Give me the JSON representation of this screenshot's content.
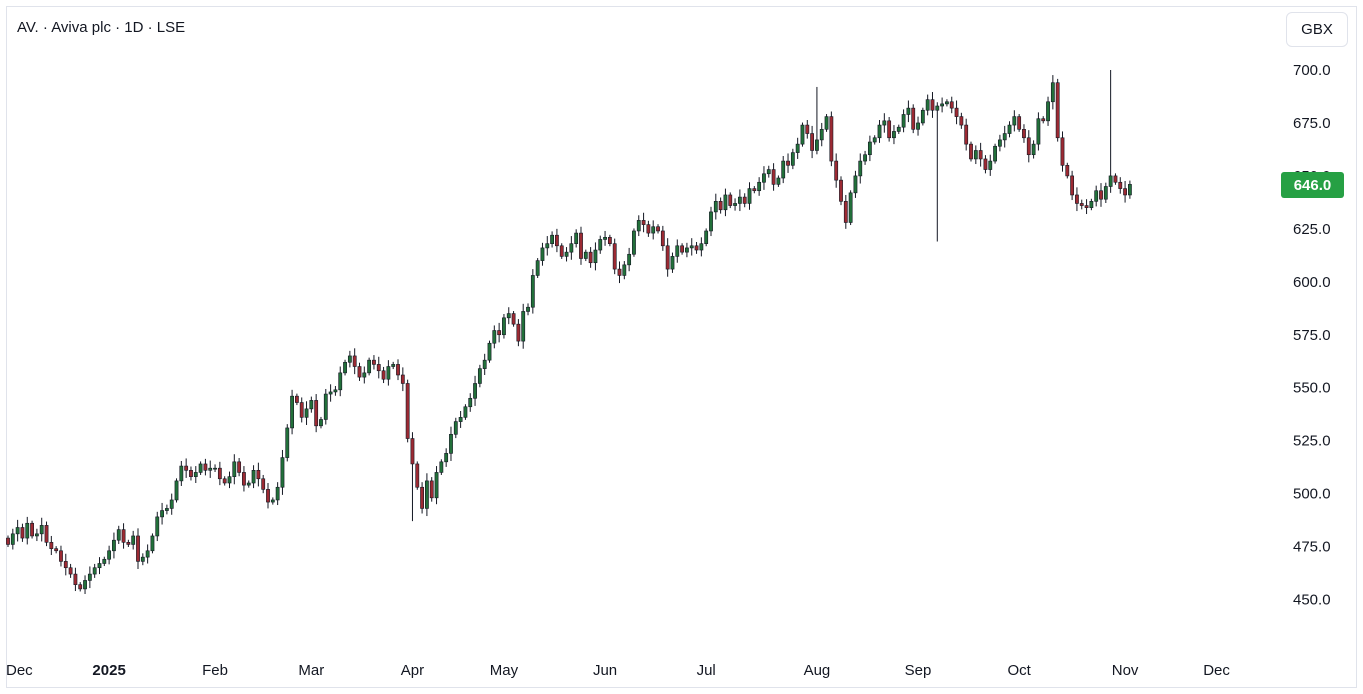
{
  "header": {
    "symbol_line": "AV. · Aviva plc · 1D · LSE",
    "currency_button": "GBX"
  },
  "last_price_label": "646.0",
  "colors": {
    "up": "#22703a",
    "down": "#9c2a33",
    "wick": "#131722",
    "price_tag": "#26a044"
  },
  "chart_data": {
    "type": "candlestick",
    "title": "AV. · Aviva plc · 1D · LSE",
    "ylabel": "GBX",
    "ylim": [
      430,
      710
    ],
    "y_ticks": [
      "700.0",
      "675.0",
      "650.0",
      "625.0",
      "600.0",
      "575.0",
      "550.0",
      "525.0",
      "500.0",
      "475.0",
      "450.0"
    ],
    "x_ticks": [
      {
        "label": "Dec",
        "bold": false
      },
      {
        "label": "2025",
        "bold": true
      },
      {
        "label": "Feb",
        "bold": false
      },
      {
        "label": "Mar",
        "bold": false
      },
      {
        "label": "Apr",
        "bold": false
      },
      {
        "label": "May",
        "bold": false
      },
      {
        "label": "Jun",
        "bold": false
      },
      {
        "label": "Jul",
        "bold": false
      },
      {
        "label": "Aug",
        "bold": false
      },
      {
        "label": "Sep",
        "bold": false
      },
      {
        "label": "Oct",
        "bold": false
      },
      {
        "label": "Nov",
        "bold": false
      },
      {
        "label": "Dec",
        "bold": false
      }
    ],
    "x_tick_index": [
      0,
      21,
      43,
      63,
      84,
      103,
      124,
      145,
      168,
      189,
      210,
      232,
      251
    ],
    "last_price": 646.0,
    "closes": [
      476,
      481,
      484,
      479,
      486,
      480,
      481,
      485,
      477,
      474,
      473,
      468,
      465,
      462,
      457,
      455,
      459,
      462,
      465,
      467,
      469,
      473,
      478,
      483,
      477,
      476,
      480,
      468,
      470,
      473,
      480,
      489,
      492,
      493,
      497,
      506,
      513,
      511,
      508,
      510,
      514,
      511,
      512,
      512,
      507,
      505,
      508,
      515,
      510,
      504,
      505,
      511,
      507,
      502,
      496,
      497,
      503,
      517,
      531,
      546,
      543,
      536,
      540,
      544,
      532,
      535,
      547,
      548,
      549,
      557,
      562,
      565,
      560,
      555,
      557,
      563,
      561,
      558,
      554,
      560,
      561,
      556,
      552,
      526,
      514,
      503,
      493,
      506,
      498,
      510,
      515,
      519,
      528,
      534,
      536,
      541,
      545,
      552,
      559,
      563,
      571,
      577,
      575,
      583,
      585,
      580,
      572,
      586,
      588,
      603,
      610,
      616,
      618,
      622,
      617,
      612,
      614,
      618,
      623,
      611,
      614,
      609,
      615,
      620,
      621,
      618,
      606,
      603,
      608,
      613,
      624,
      629,
      627,
      623,
      626,
      624,
      617,
      606,
      612,
      617,
      614,
      616,
      617,
      615,
      618,
      624,
      633,
      638,
      634,
      641,
      636,
      637,
      640,
      637,
      644,
      643,
      647,
      651,
      653,
      646,
      649,
      657,
      655,
      661,
      665,
      674,
      670,
      662,
      667,
      672,
      678,
      657,
      648,
      638,
      628,
      642,
      650,
      657,
      660,
      666,
      668,
      674,
      676,
      668,
      671,
      673,
      679,
      682,
      672,
      675,
      681,
      686,
      681,
      683,
      684,
      685,
      682,
      678,
      674,
      665,
      658,
      662,
      658,
      653,
      657,
      664,
      667,
      670,
      674,
      678,
      672,
      668,
      660,
      665,
      677,
      676,
      685,
      694,
      668,
      655,
      650,
      641,
      637,
      636,
      635,
      638,
      643,
      639,
      645,
      650,
      647,
      644,
      641,
      646
    ]
  }
}
